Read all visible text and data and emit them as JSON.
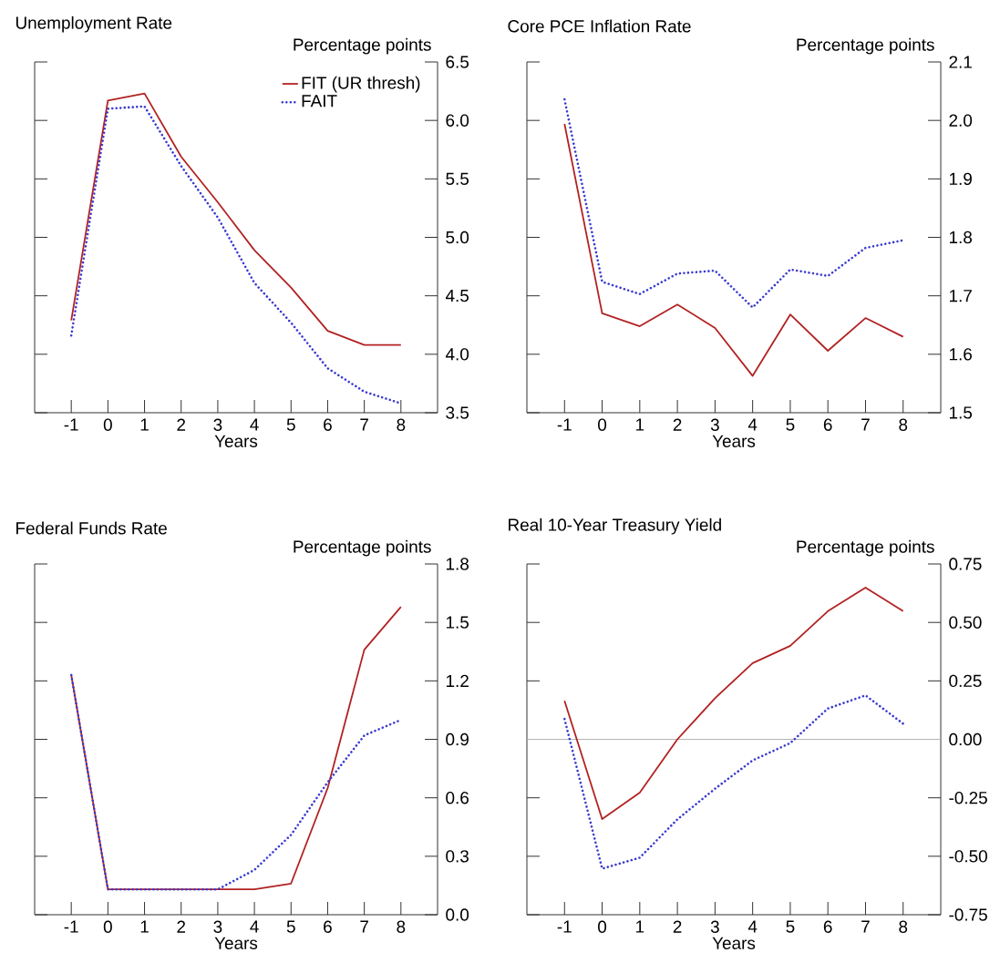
{
  "chart_data": [
    {
      "type": "line",
      "title": "Unemployment Rate",
      "xlabel": "Years",
      "ylabel": "Percentage points",
      "x": [
        -1,
        0,
        1,
        2,
        3,
        4,
        5,
        6,
        7,
        8
      ],
      "xlim": [
        -2,
        9
      ],
      "xticks": [
        -1,
        0,
        1,
        2,
        3,
        4,
        5,
        6,
        7,
        8
      ],
      "ylim": [
        3.5,
        6.5
      ],
      "yticks": [
        {
          "value": 3.5,
          "label": "3.5"
        },
        {
          "value": 4,
          "label": "4.0"
        },
        {
          "value": 4.5,
          "label": "4.5"
        },
        {
          "value": 5,
          "label": "5.0"
        },
        {
          "value": 5.5,
          "label": "5.5"
        },
        {
          "value": 6,
          "label": "6.0"
        },
        {
          "value": 6.5,
          "label": "6.5"
        }
      ],
      "legend": "top right",
      "marker": "none",
      "series": [
        {
          "name": "FIT (UR thresh)",
          "color": "#b22222",
          "line_style": "solid",
          "values": [
            4.29,
            6.17,
            6.23,
            5.69,
            5.3,
            4.89,
            4.57,
            4.2,
            4.08,
            4.08
          ]
        },
        {
          "name": "FAIT",
          "color": "#3a3ad0",
          "line_style": "dotted",
          "values": [
            4.16,
            6.1,
            6.12,
            5.61,
            5.17,
            4.61,
            4.27,
            3.88,
            3.68,
            3.58
          ]
        }
      ]
    },
    {
      "type": "line",
      "title": "Core PCE Inflation Rate",
      "xlabel": "Years",
      "ylabel": "Percentage points",
      "x": [
        -1,
        0,
        1,
        2,
        3,
        4,
        5,
        6,
        7,
        8
      ],
      "xlim": [
        -2,
        9
      ],
      "xticks": [
        -1,
        0,
        1,
        2,
        3,
        4,
        5,
        6,
        7,
        8
      ],
      "ylim": [
        1.5,
        2.1
      ],
      "yticks": [
        {
          "value": 1.5,
          "label": "1.5"
        },
        {
          "value": 1.6,
          "label": "1.6"
        },
        {
          "value": 1.7,
          "label": "1.7"
        },
        {
          "value": 1.8,
          "label": "1.8"
        },
        {
          "value": 1.9,
          "label": "1.9"
        },
        {
          "value": 2,
          "label": "2.0"
        },
        {
          "value": 2.1,
          "label": "2.1"
        }
      ],
      "marker": "none",
      "series": [
        {
          "color": "#b22222",
          "line_style": "solid",
          "values": [
            1.994,
            1.67,
            1.648,
            1.685,
            1.645,
            1.563,
            1.668,
            1.606,
            1.662,
            1.63
          ]
        },
        {
          "color": "#3a3ad0",
          "line_style": "dotted",
          "values": [
            2.036,
            1.724,
            1.703,
            1.738,
            1.743,
            1.68,
            1.745,
            1.734,
            1.782,
            1.795
          ]
        }
      ]
    },
    {
      "type": "line",
      "title": "Federal Funds Rate",
      "xlabel": "Years",
      "ylabel": "Percentage points",
      "x": [
        -1,
        0,
        1,
        2,
        3,
        4,
        5,
        6,
        7,
        8
      ],
      "xlim": [
        -2,
        9
      ],
      "xticks": [
        -1,
        0,
        1,
        2,
        3,
        4,
        5,
        6,
        7,
        8
      ],
      "ylim": [
        0,
        1.8
      ],
      "yticks": [
        {
          "value": 0,
          "label": "0.0"
        },
        {
          "value": 0.3,
          "label": "0.3"
        },
        {
          "value": 0.6,
          "label": "0.6"
        },
        {
          "value": 0.9,
          "label": "0.9"
        },
        {
          "value": 1.2,
          "label": "1.2"
        },
        {
          "value": 1.5,
          "label": "1.5"
        },
        {
          "value": 1.8,
          "label": "1.8"
        }
      ],
      "marker": "none",
      "series": [
        {
          "color": "#b22222",
          "line_style": "solid",
          "values": [
            1.23,
            0.13,
            0.13,
            0.13,
            0.13,
            0.13,
            0.16,
            0.65,
            1.36,
            1.58
          ]
        },
        {
          "color": "#3a3ad0",
          "line_style": "dotted",
          "values": [
            1.23,
            0.13,
            0.13,
            0.13,
            0.13,
            0.23,
            0.41,
            0.68,
            0.92,
            1.0
          ]
        }
      ]
    },
    {
      "type": "line",
      "title": "Real 10-Year Treasury Yield",
      "xlabel": "Years",
      "ylabel": "Percentage points",
      "x": [
        -1,
        0,
        1,
        2,
        3,
        4,
        5,
        6,
        7,
        8
      ],
      "xlim": [
        -2,
        9
      ],
      "xticks": [
        -1,
        0,
        1,
        2,
        3,
        4,
        5,
        6,
        7,
        8
      ],
      "ylim": [
        -0.75,
        0.75
      ],
      "yticks": [
        {
          "value": -0.75,
          "label": "-0.75"
        },
        {
          "value": -0.5,
          "label": "-0.50"
        },
        {
          "value": -0.25,
          "label": "-0.25"
        },
        {
          "value": 0,
          "label": "0.00"
        },
        {
          "value": 0.25,
          "label": "0.25"
        },
        {
          "value": 0.5,
          "label": "0.50"
        },
        {
          "value": 0.75,
          "label": "0.75"
        }
      ],
      "marker": "none",
      "ref_lines": [
        {
          "axis": "y",
          "value": 0,
          "color": "#b4b4b4"
        }
      ],
      "series": [
        {
          "color": "#b22222",
          "line_style": "solid",
          "values": [
            0.165,
            -0.341,
            -0.228,
            0.0,
            0.176,
            0.326,
            0.4,
            0.548,
            0.649,
            0.548
          ]
        },
        {
          "color": "#3a3ad0",
          "line_style": "dotted",
          "values": [
            0.087,
            -0.553,
            -0.506,
            -0.342,
            -0.211,
            -0.09,
            -0.016,
            0.132,
            0.188,
            0.067
          ]
        }
      ]
    }
  ]
}
